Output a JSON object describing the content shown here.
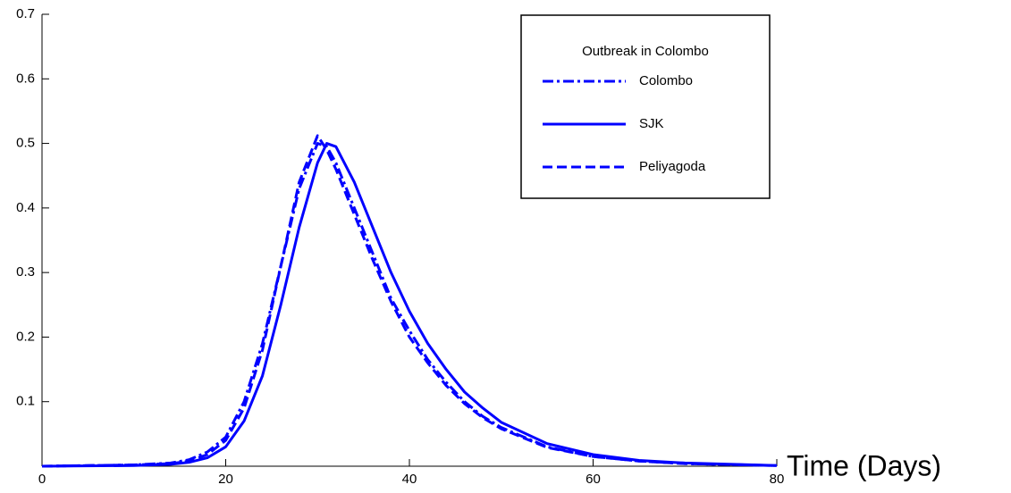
{
  "chart_data": {
    "type": "line",
    "xlabel": "Time (Days)",
    "legend_title": "Outbreak in Colombo",
    "legend": "upper right",
    "x": [
      0,
      10,
      14,
      16,
      18,
      20,
      22,
      24,
      26,
      28,
      30,
      31,
      32,
      34,
      36,
      38,
      40,
      42,
      44,
      46,
      48,
      50,
      55,
      60,
      65,
      70,
      80
    ],
    "series": [
      {
        "name": "Colombo",
        "color": "#0000ff",
        "style": "dash-dot",
        "values": [
          0,
          0.002,
          0.005,
          0.01,
          0.022,
          0.045,
          0.1,
          0.19,
          0.31,
          0.43,
          0.5,
          0.495,
          0.47,
          0.4,
          0.33,
          0.26,
          0.21,
          0.165,
          0.13,
          0.1,
          0.077,
          0.06,
          0.03,
          0.015,
          0.008,
          0.004,
          0.001
        ]
      },
      {
        "name": "SJK",
        "color": "#0000ff",
        "style": "solid",
        "values": [
          0,
          0.001,
          0.003,
          0.006,
          0.013,
          0.03,
          0.07,
          0.14,
          0.25,
          0.37,
          0.47,
          0.5,
          0.495,
          0.44,
          0.37,
          0.3,
          0.24,
          0.19,
          0.15,
          0.115,
          0.09,
          0.068,
          0.035,
          0.018,
          0.009,
          0.005,
          0.001
        ]
      },
      {
        "name": "Peliyagoda",
        "color": "#0000ff",
        "style": "dashed",
        "values": [
          0,
          0.002,
          0.004,
          0.008,
          0.018,
          0.04,
          0.09,
          0.18,
          0.31,
          0.44,
          0.512,
          0.49,
          0.46,
          0.39,
          0.32,
          0.255,
          0.2,
          0.16,
          0.125,
          0.097,
          0.075,
          0.058,
          0.029,
          0.015,
          0.008,
          0.004,
          0.001
        ]
      }
    ],
    "xlim": [
      0,
      80
    ],
    "xticks": [
      0,
      20,
      40,
      60,
      80
    ],
    "ylim": [
      0,
      0.7
    ],
    "yticks": [
      0.1,
      0.2,
      0.3,
      0.4,
      0.5,
      0.6,
      0.7
    ]
  }
}
